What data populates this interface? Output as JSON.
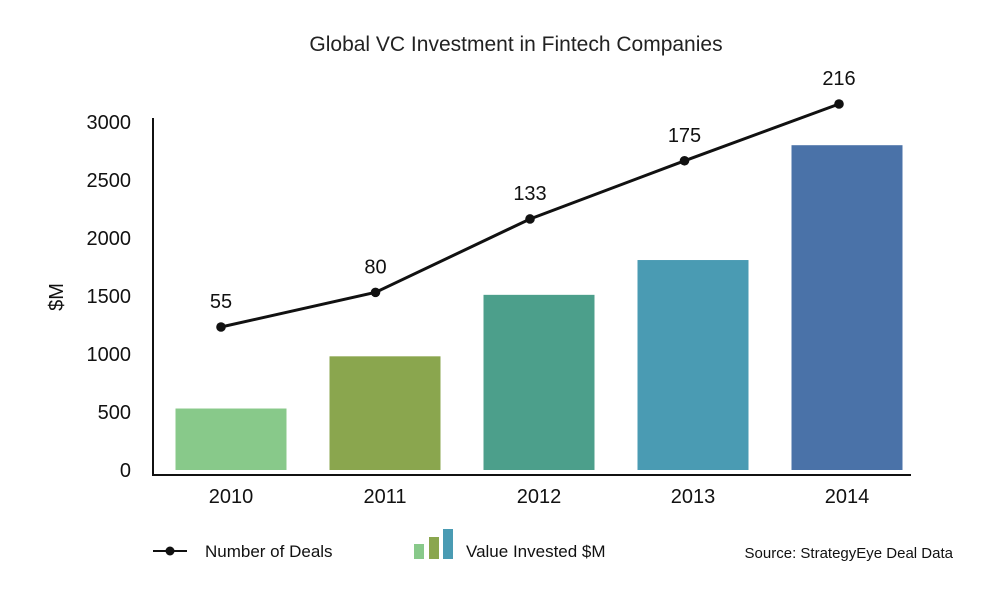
{
  "chart_data": {
    "type": "bar",
    "title": "Global VC Investment in Fintech Companies",
    "xlabel": "",
    "ylabel": "$M",
    "categories": [
      "2010",
      "2011",
      "2012",
      "2013",
      "2014"
    ],
    "ylim": [
      0,
      3000
    ],
    "yticks": [
      0,
      500,
      1000,
      1500,
      2000,
      2500,
      3000
    ],
    "grid": false,
    "series": [
      {
        "name": "Value Invested $M",
        "type": "bar",
        "values": [
          530,
          980,
          1510,
          1810,
          2800
        ],
        "colors": [
          "#88c98a",
          "#8aa64e",
          "#4c9f8b",
          "#4a9bb3",
          "#4a72a8"
        ]
      },
      {
        "name": "Number of Deals",
        "type": "line",
        "values": [
          55,
          80,
          133,
          175,
          216
        ],
        "labels": [
          "55",
          "80",
          "133",
          "175",
          "216"
        ],
        "color": "#111111"
      }
    ],
    "legend": {
      "placement": "bottom",
      "items": [
        "Number of Deals",
        "Value Invested $M"
      ]
    },
    "source": "Source: StrategyEye Deal Data"
  }
}
